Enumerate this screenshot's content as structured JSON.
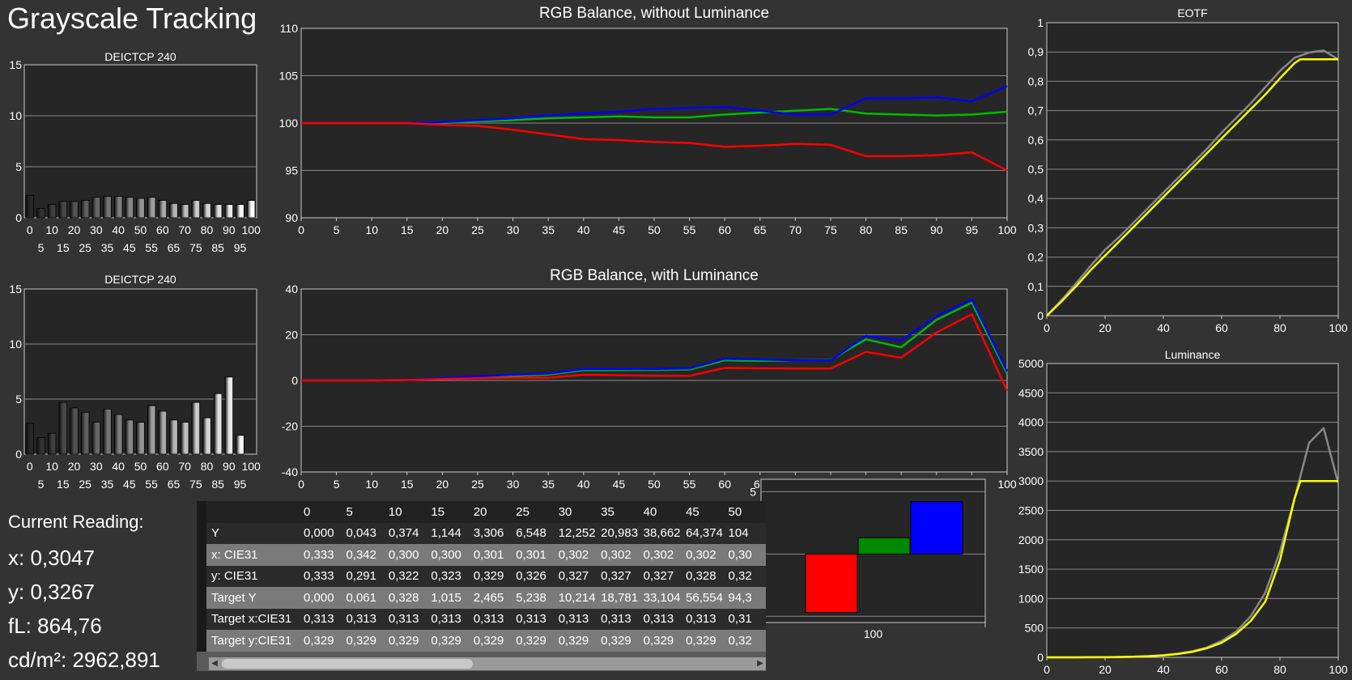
{
  "page": {
    "title": "Grayscale Tracking"
  },
  "current_reading": {
    "heading": "Current Reading:",
    "x": "x: 0,3047",
    "y": "y: 0,3267",
    "fl": "fL: 864,76",
    "cdm2": "cd/m²: 2962,891"
  },
  "table": {
    "columns": [
      "0",
      "5",
      "10",
      "15",
      "20",
      "25",
      "30",
      "35",
      "40",
      "45",
      "50"
    ],
    "rows": [
      {
        "label": "Y",
        "values": [
          "0,000",
          "0,043",
          "0,374",
          "1,144",
          "3,306",
          "6,548",
          "12,252",
          "20,983",
          "38,662",
          "64,374",
          "104"
        ]
      },
      {
        "label": "x: CIE31",
        "values": [
          "0,333",
          "0,342",
          "0,300",
          "0,300",
          "0,301",
          "0,301",
          "0,302",
          "0,302",
          "0,302",
          "0,302",
          "0,30"
        ]
      },
      {
        "label": "y: CIE31",
        "values": [
          "0,333",
          "0,291",
          "0,322",
          "0,323",
          "0,329",
          "0,326",
          "0,327",
          "0,327",
          "0,327",
          "0,328",
          "0,32"
        ]
      },
      {
        "label": "Target Y",
        "values": [
          "0,000",
          "0,061",
          "0,328",
          "1,015",
          "2,465",
          "5,238",
          "10,214",
          "18,781",
          "33,104",
          "56,554",
          "94,3"
        ]
      },
      {
        "label": "Target x:CIE31",
        "values": [
          "0,313",
          "0,313",
          "0,313",
          "0,313",
          "0,313",
          "0,313",
          "0,313",
          "0,313",
          "0,313",
          "0,313",
          "0,31"
        ]
      },
      {
        "label": "Target y:CIE31",
        "values": [
          "0,329",
          "0,329",
          "0,329",
          "0,329",
          "0,329",
          "0,329",
          "0,329",
          "0,329",
          "0,329",
          "0,329",
          "0,32"
        ]
      }
    ]
  },
  "chart_data": [
    {
      "id": "deltae-top",
      "type": "bar",
      "title": "DEICTCP 240",
      "categories": [
        0,
        5,
        10,
        15,
        20,
        25,
        30,
        35,
        40,
        45,
        50,
        55,
        60,
        65,
        70,
        75,
        80,
        85,
        90,
        95,
        100
      ],
      "values": [
        2.2,
        0.9,
        1.3,
        1.6,
        1.6,
        1.7,
        2.0,
        2.1,
        2.1,
        2.0,
        1.9,
        2.0,
        1.7,
        1.4,
        1.3,
        1.7,
        1.4,
        1.3,
        1.3,
        1.3,
        1.7
      ],
      "ylim": [
        0,
        15
      ],
      "yticks": [
        0,
        5,
        10,
        15
      ],
      "xticks_top": [
        "0",
        "10",
        "20",
        "30",
        "40",
        "50",
        "60",
        "70",
        "80",
        "90",
        "100"
      ],
      "xticks_bottom": [
        "5",
        "15",
        "25",
        "35",
        "45",
        "55",
        "65",
        "75",
        "85",
        "95"
      ],
      "grid": true
    },
    {
      "id": "deltae-bottom",
      "type": "bar",
      "title": "DEICTCP 240",
      "categories": [
        0,
        5,
        10,
        15,
        20,
        25,
        30,
        35,
        40,
        45,
        50,
        55,
        60,
        65,
        70,
        75,
        80,
        85,
        90,
        95,
        100
      ],
      "values": [
        2.8,
        1.5,
        1.9,
        4.7,
        4.2,
        3.8,
        2.9,
        4.1,
        3.6,
        3.1,
        2.9,
        4.4,
        3.9,
        3.1,
        2.9,
        4.7,
        3.3,
        5.5,
        7.0,
        1.7,
        0
      ],
      "ylim": [
        0,
        15
      ],
      "yticks": [
        0,
        5,
        10,
        15
      ],
      "xticks_top": [
        "0",
        "10",
        "20",
        "30",
        "40",
        "50",
        "60",
        "70",
        "80",
        "90",
        "100"
      ],
      "xticks_bottom": [
        "5",
        "15",
        "25",
        "35",
        "45",
        "55",
        "65",
        "75",
        "85",
        "95"
      ],
      "grid": true
    },
    {
      "id": "rgb-balance",
      "type": "line",
      "title": "RGB Balance, without Luminance",
      "x": [
        0,
        5,
        10,
        15,
        20,
        25,
        30,
        35,
        40,
        45,
        50,
        55,
        60,
        65,
        70,
        75,
        80,
        85,
        90,
        95,
        100
      ],
      "xlim": [
        0,
        100
      ],
      "ylim": [
        90,
        110
      ],
      "yticks": [
        90,
        95,
        100,
        105,
        110
      ],
      "xticks": [
        0,
        5,
        10,
        15,
        20,
        25,
        30,
        35,
        40,
        45,
        50,
        55,
        60,
        65,
        70,
        75,
        80,
        85,
        90,
        95,
        100
      ],
      "grid": true,
      "series": [
        {
          "color": "#00bb00",
          "values": [
            100,
            100,
            100,
            100,
            100,
            100.2,
            100.3,
            100.5,
            100.6,
            100.7,
            100.6,
            100.6,
            100.9,
            101.1,
            101.3,
            101.5,
            101.0,
            100.9,
            100.8,
            100.9,
            101.2
          ]
        },
        {
          "color": "#0000ff",
          "values": [
            100,
            100,
            100,
            100,
            100.1,
            100.3,
            100.5,
            100.8,
            101.0,
            101.2,
            101.5,
            101.6,
            101.7,
            101.3,
            100.9,
            100.9,
            102.6,
            102.6,
            102.7,
            102.3,
            103.9
          ]
        },
        {
          "color": "#ff0000",
          "values": [
            100,
            100,
            100,
            100,
            99.8,
            99.7,
            99.3,
            98.8,
            98.3,
            98.2,
            98.0,
            97.9,
            97.5,
            97.6,
            97.8,
            97.7,
            96.5,
            96.5,
            96.6,
            96.9,
            95.0
          ]
        }
      ]
    },
    {
      "id": "rgb-balance-lum",
      "type": "line",
      "title": "RGB Balance, with Luminance",
      "x": [
        0,
        5,
        10,
        15,
        20,
        25,
        30,
        35,
        40,
        45,
        50,
        55,
        60,
        65,
        70,
        75,
        80,
        85,
        90,
        95,
        100
      ],
      "xlim": [
        0,
        100
      ],
      "ylim": [
        -40,
        40
      ],
      "yticks": [
        -40,
        -20,
        0,
        20,
        40
      ],
      "xticks": [
        0,
        5,
        10,
        15,
        20,
        25,
        30,
        35,
        40,
        45,
        50,
        55,
        60,
        65,
        70,
        75,
        80,
        85,
        90,
        95,
        100
      ],
      "grid": true,
      "series": [
        {
          "color": "#00bb00",
          "values": [
            0,
            0,
            0,
            0.3,
            0.8,
            1.5,
            2.0,
            2.5,
            4.5,
            4.5,
            4.6,
            4.8,
            8.8,
            8.6,
            8.8,
            9.0,
            18.0,
            14.5,
            26.5,
            34.0,
            3.0
          ]
        },
        {
          "color": "#0000ff",
          "values": [
            0,
            0,
            0,
            0.4,
            1.0,
            1.8,
            2.5,
            3.0,
            5.0,
            5.0,
            5.0,
            5.3,
            9.5,
            9.2,
            8.8,
            8.8,
            19.5,
            17.5,
            28.0,
            35.5,
            4.0
          ]
        },
        {
          "color": "#ff0000",
          "values": [
            0,
            0,
            0,
            0.2,
            0.6,
            1.0,
            1.2,
            1.2,
            2.5,
            2.3,
            2.1,
            2.0,
            5.5,
            5.3,
            5.2,
            5.2,
            12.5,
            10.0,
            21.0,
            29.0,
            -4.5
          ]
        }
      ]
    },
    {
      "id": "eotf",
      "type": "line",
      "title": "EOTF",
      "xlim": [
        0,
        100
      ],
      "ylim": [
        0,
        1
      ],
      "yticks": [
        "0",
        "0,1",
        "0,2",
        "0,3",
        "0,4",
        "0,5",
        "0,6",
        "0,7",
        "0,8",
        "0,9",
        "1"
      ],
      "xticks": [
        0,
        20,
        40,
        60,
        80,
        100
      ],
      "grid": true,
      "series": [
        {
          "color": "#888888",
          "x": [
            0,
            5,
            10,
            15,
            20,
            25,
            30,
            35,
            40,
            45,
            50,
            55,
            60,
            65,
            70,
            75,
            80,
            85,
            90,
            95,
            100
          ],
          "values": [
            0,
            0.053,
            0.11,
            0.17,
            0.225,
            0.27,
            0.32,
            0.37,
            0.42,
            0.47,
            0.52,
            0.57,
            0.625,
            0.675,
            0.725,
            0.78,
            0.835,
            0.88,
            0.898,
            0.905,
            0.875
          ]
        },
        {
          "color": "#ffff00",
          "x": [
            0,
            5,
            10,
            15,
            20,
            25,
            30,
            35,
            40,
            45,
            50,
            55,
            60,
            65,
            70,
            75,
            80,
            85,
            87,
            90,
            95,
            100
          ],
          "values": [
            0,
            0.048,
            0.1,
            0.155,
            0.205,
            0.255,
            0.305,
            0.355,
            0.405,
            0.455,
            0.505,
            0.555,
            0.605,
            0.655,
            0.705,
            0.755,
            0.81,
            0.862,
            0.875,
            0.875,
            0.875,
            0.875
          ]
        }
      ]
    },
    {
      "id": "luminance",
      "type": "line",
      "title": "Luminance",
      "xlim": [
        0,
        100
      ],
      "ylim": [
        0,
        5000
      ],
      "yticks": [
        0,
        500,
        1000,
        1500,
        2000,
        2500,
        3000,
        3500,
        4000,
        4500,
        5000
      ],
      "xticks": [
        0,
        20,
        40,
        60,
        80,
        100
      ],
      "grid": true,
      "series": [
        {
          "color": "#888888",
          "x": [
            0,
            5,
            10,
            15,
            20,
            25,
            30,
            35,
            40,
            45,
            50,
            55,
            60,
            65,
            70,
            75,
            80,
            85,
            90,
            95,
            100
          ],
          "values": [
            0,
            0,
            0,
            1,
            3,
            7,
            12,
            21,
            39,
            64,
            105,
            170,
            280,
            440,
            700,
            1100,
            1800,
            2700,
            3650,
            3900,
            2960
          ]
        },
        {
          "color": "#ffff00",
          "x": [
            0,
            5,
            10,
            15,
            20,
            25,
            30,
            35,
            40,
            45,
            50,
            55,
            60,
            65,
            70,
            75,
            80,
            85,
            87,
            90,
            95,
            100
          ],
          "values": [
            0,
            0,
            0,
            1,
            2,
            5,
            10,
            19,
            33,
            57,
            94,
            155,
            250,
            400,
            620,
            950,
            1650,
            2700,
            3000,
            3000,
            3000,
            3000
          ]
        }
      ]
    },
    {
      "id": "rgb-bars",
      "type": "bar",
      "categories": [
        "R",
        "G",
        "B"
      ],
      "category_label": "100",
      "colors": [
        "#ff0000",
        "#008800",
        "#0000ff"
      ],
      "values": [
        -4.7,
        1.3,
        4.2
      ],
      "ylim": [
        -5.5,
        6
      ],
      "yticks": [
        -5,
        0,
        5
      ]
    }
  ]
}
